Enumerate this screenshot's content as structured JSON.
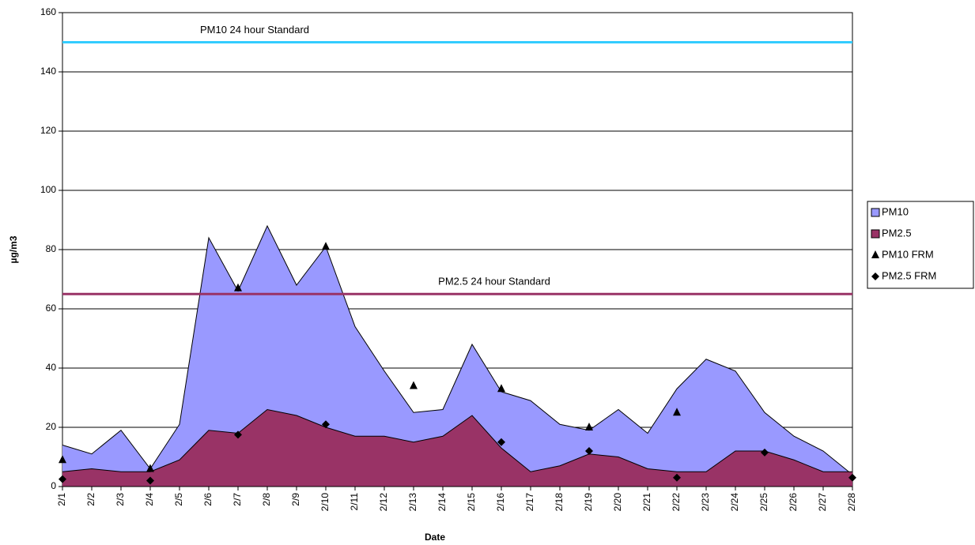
{
  "chart_data": {
    "type": "area",
    "x_label": "Date",
    "y_label": "µg/m3",
    "categories": [
      "2/1",
      "2/2",
      "2/3",
      "2/4",
      "2/5",
      "2/6",
      "2/7",
      "2/8",
      "2/9",
      "2/10",
      "2/11",
      "2/12",
      "2/13",
      "2/14",
      "2/15",
      "2/16",
      "2/17",
      "2/18",
      "2/19",
      "2/20",
      "2/21",
      "2/22",
      "2/23",
      "2/24",
      "2/25",
      "2/26",
      "2/27",
      "2/28"
    ],
    "ylim": [
      0,
      160
    ],
    "yticks": [
      0,
      20,
      40,
      60,
      80,
      100,
      120,
      140,
      160
    ],
    "grid": true,
    "legend": "right",
    "series": [
      {
        "name": "PM10",
        "kind": "area",
        "color": "#9999ff",
        "values": [
          14,
          11,
          19,
          6,
          21,
          84,
          66,
          88,
          68,
          81,
          54,
          39,
          25,
          26,
          48,
          32,
          29,
          21,
          19,
          26,
          18,
          33,
          43,
          39,
          25,
          17,
          12,
          4
        ]
      },
      {
        "name": "PM2.5",
        "kind": "area",
        "color": "#993366",
        "values": [
          5,
          6,
          5,
          5,
          9,
          19,
          18,
          26,
          24,
          20,
          17,
          17,
          15,
          17,
          24,
          13,
          5,
          7,
          11,
          10,
          6,
          5,
          5,
          12,
          12,
          9,
          5,
          5
        ]
      },
      {
        "name": "PM10 FRM",
        "kind": "marker",
        "marker": "triangle",
        "color": "#000000",
        "values": [
          9,
          null,
          null,
          6,
          null,
          null,
          67,
          null,
          null,
          81,
          null,
          null,
          34,
          null,
          null,
          33,
          null,
          null,
          20,
          null,
          null,
          25,
          null,
          null,
          null,
          null,
          null,
          null
        ]
      },
      {
        "name": "PM2.5 FRM",
        "kind": "marker",
        "marker": "diamond",
        "color": "#000000",
        "values": [
          2.5,
          null,
          null,
          2,
          null,
          null,
          17.5,
          null,
          null,
          21,
          null,
          null,
          null,
          null,
          null,
          15,
          null,
          null,
          12,
          null,
          null,
          3,
          null,
          null,
          11.5,
          null,
          null,
          3
        ]
      }
    ],
    "reference_lines": [
      {
        "label": "PM10 24 hour Standard",
        "value": 150,
        "color": "#33ccff"
      },
      {
        "label": "PM2.5 24 hour Standard",
        "value": 65,
        "color": "#993366"
      }
    ]
  }
}
